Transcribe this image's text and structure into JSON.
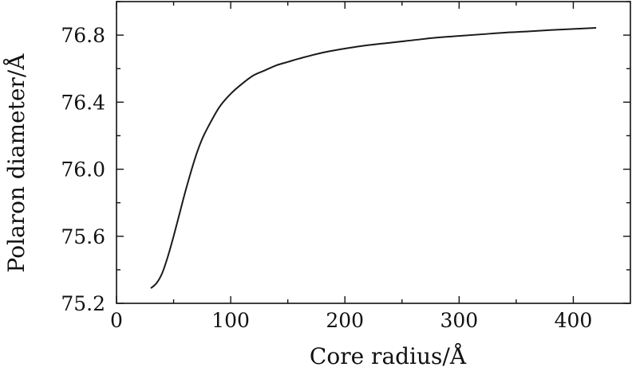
{
  "chart_data": {
    "type": "line",
    "title": "",
    "xlabel": "Core radius/Å",
    "ylabel": "Polaron diameter/Å",
    "xlim": [
      0,
      450
    ],
    "ylim": [
      75.2,
      77.0
    ],
    "x_ticks": [
      0,
      100,
      200,
      300,
      400
    ],
    "x_tick_labels": [
      "0",
      "100",
      "200",
      "300",
      "400"
    ],
    "y_ticks": [
      75.2,
      75.6,
      76.0,
      76.4,
      76.8
    ],
    "y_tick_labels": [
      "75.2",
      "75.6",
      "76.0",
      "76.4",
      "76.8"
    ],
    "grid": false,
    "line_color": "#1a1a1a",
    "series": [
      {
        "x": [
          30,
          35,
          40,
          45,
          50,
          55,
          60,
          65,
          70,
          75,
          80,
          90,
          100,
          110,
          120,
          130,
          140,
          150,
          160,
          180,
          200,
          220,
          240,
          260,
          280,
          300,
          320,
          340,
          360,
          380,
          400,
          420
        ],
        "y": [
          75.29,
          75.32,
          75.38,
          75.48,
          75.6,
          75.73,
          75.86,
          75.98,
          76.09,
          76.18,
          76.25,
          76.37,
          76.45,
          76.51,
          76.56,
          76.59,
          76.62,
          76.64,
          76.66,
          76.695,
          76.72,
          76.74,
          76.755,
          76.77,
          76.785,
          76.795,
          76.805,
          76.815,
          76.822,
          76.83,
          76.837,
          76.843
        ]
      }
    ]
  }
}
